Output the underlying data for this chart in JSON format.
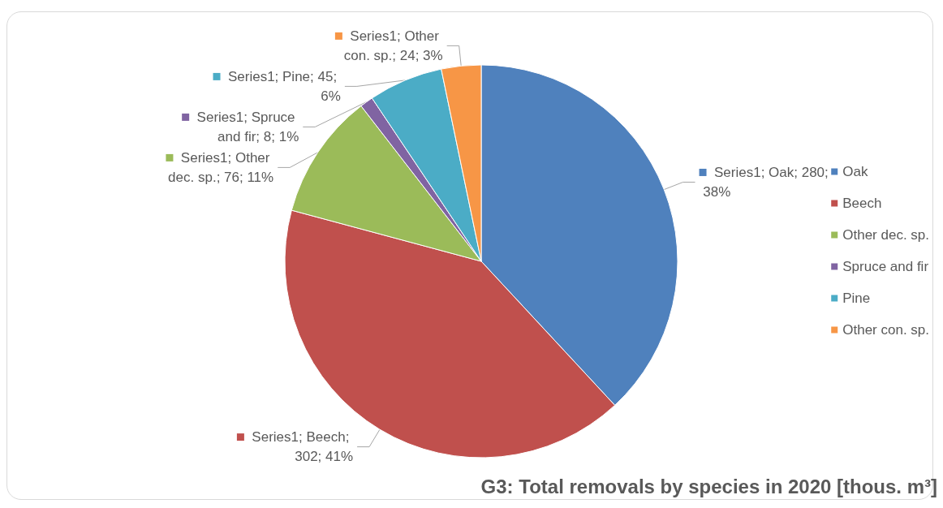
{
  "chart_data": {
    "type": "pie",
    "title": "G3: Total removals by species in 2020 [thous. m³]",
    "categories": [
      "Oak",
      "Beech",
      "Other dec. sp.",
      "Spruce and fir",
      "Pine",
      "Other con. sp."
    ],
    "values": [
      280,
      302,
      76,
      8,
      45,
      24
    ],
    "colors": [
      "#4f81bd",
      "#c0504d",
      "#9bbb59",
      "#8064a2",
      "#4bacc6",
      "#f79646"
    ],
    "value_labels": [
      "Series1; Oak; 280; 38%",
      "Series1; Beech; 302; 41%",
      "Series1; Other dec. sp.; 76; 11%",
      "Series1; Spruce and fir; 8; 1%",
      "Series1; Pine; 45; 6%",
      "Series1; Other con. sp.; 24; 3%"
    ],
    "legend": "right"
  }
}
